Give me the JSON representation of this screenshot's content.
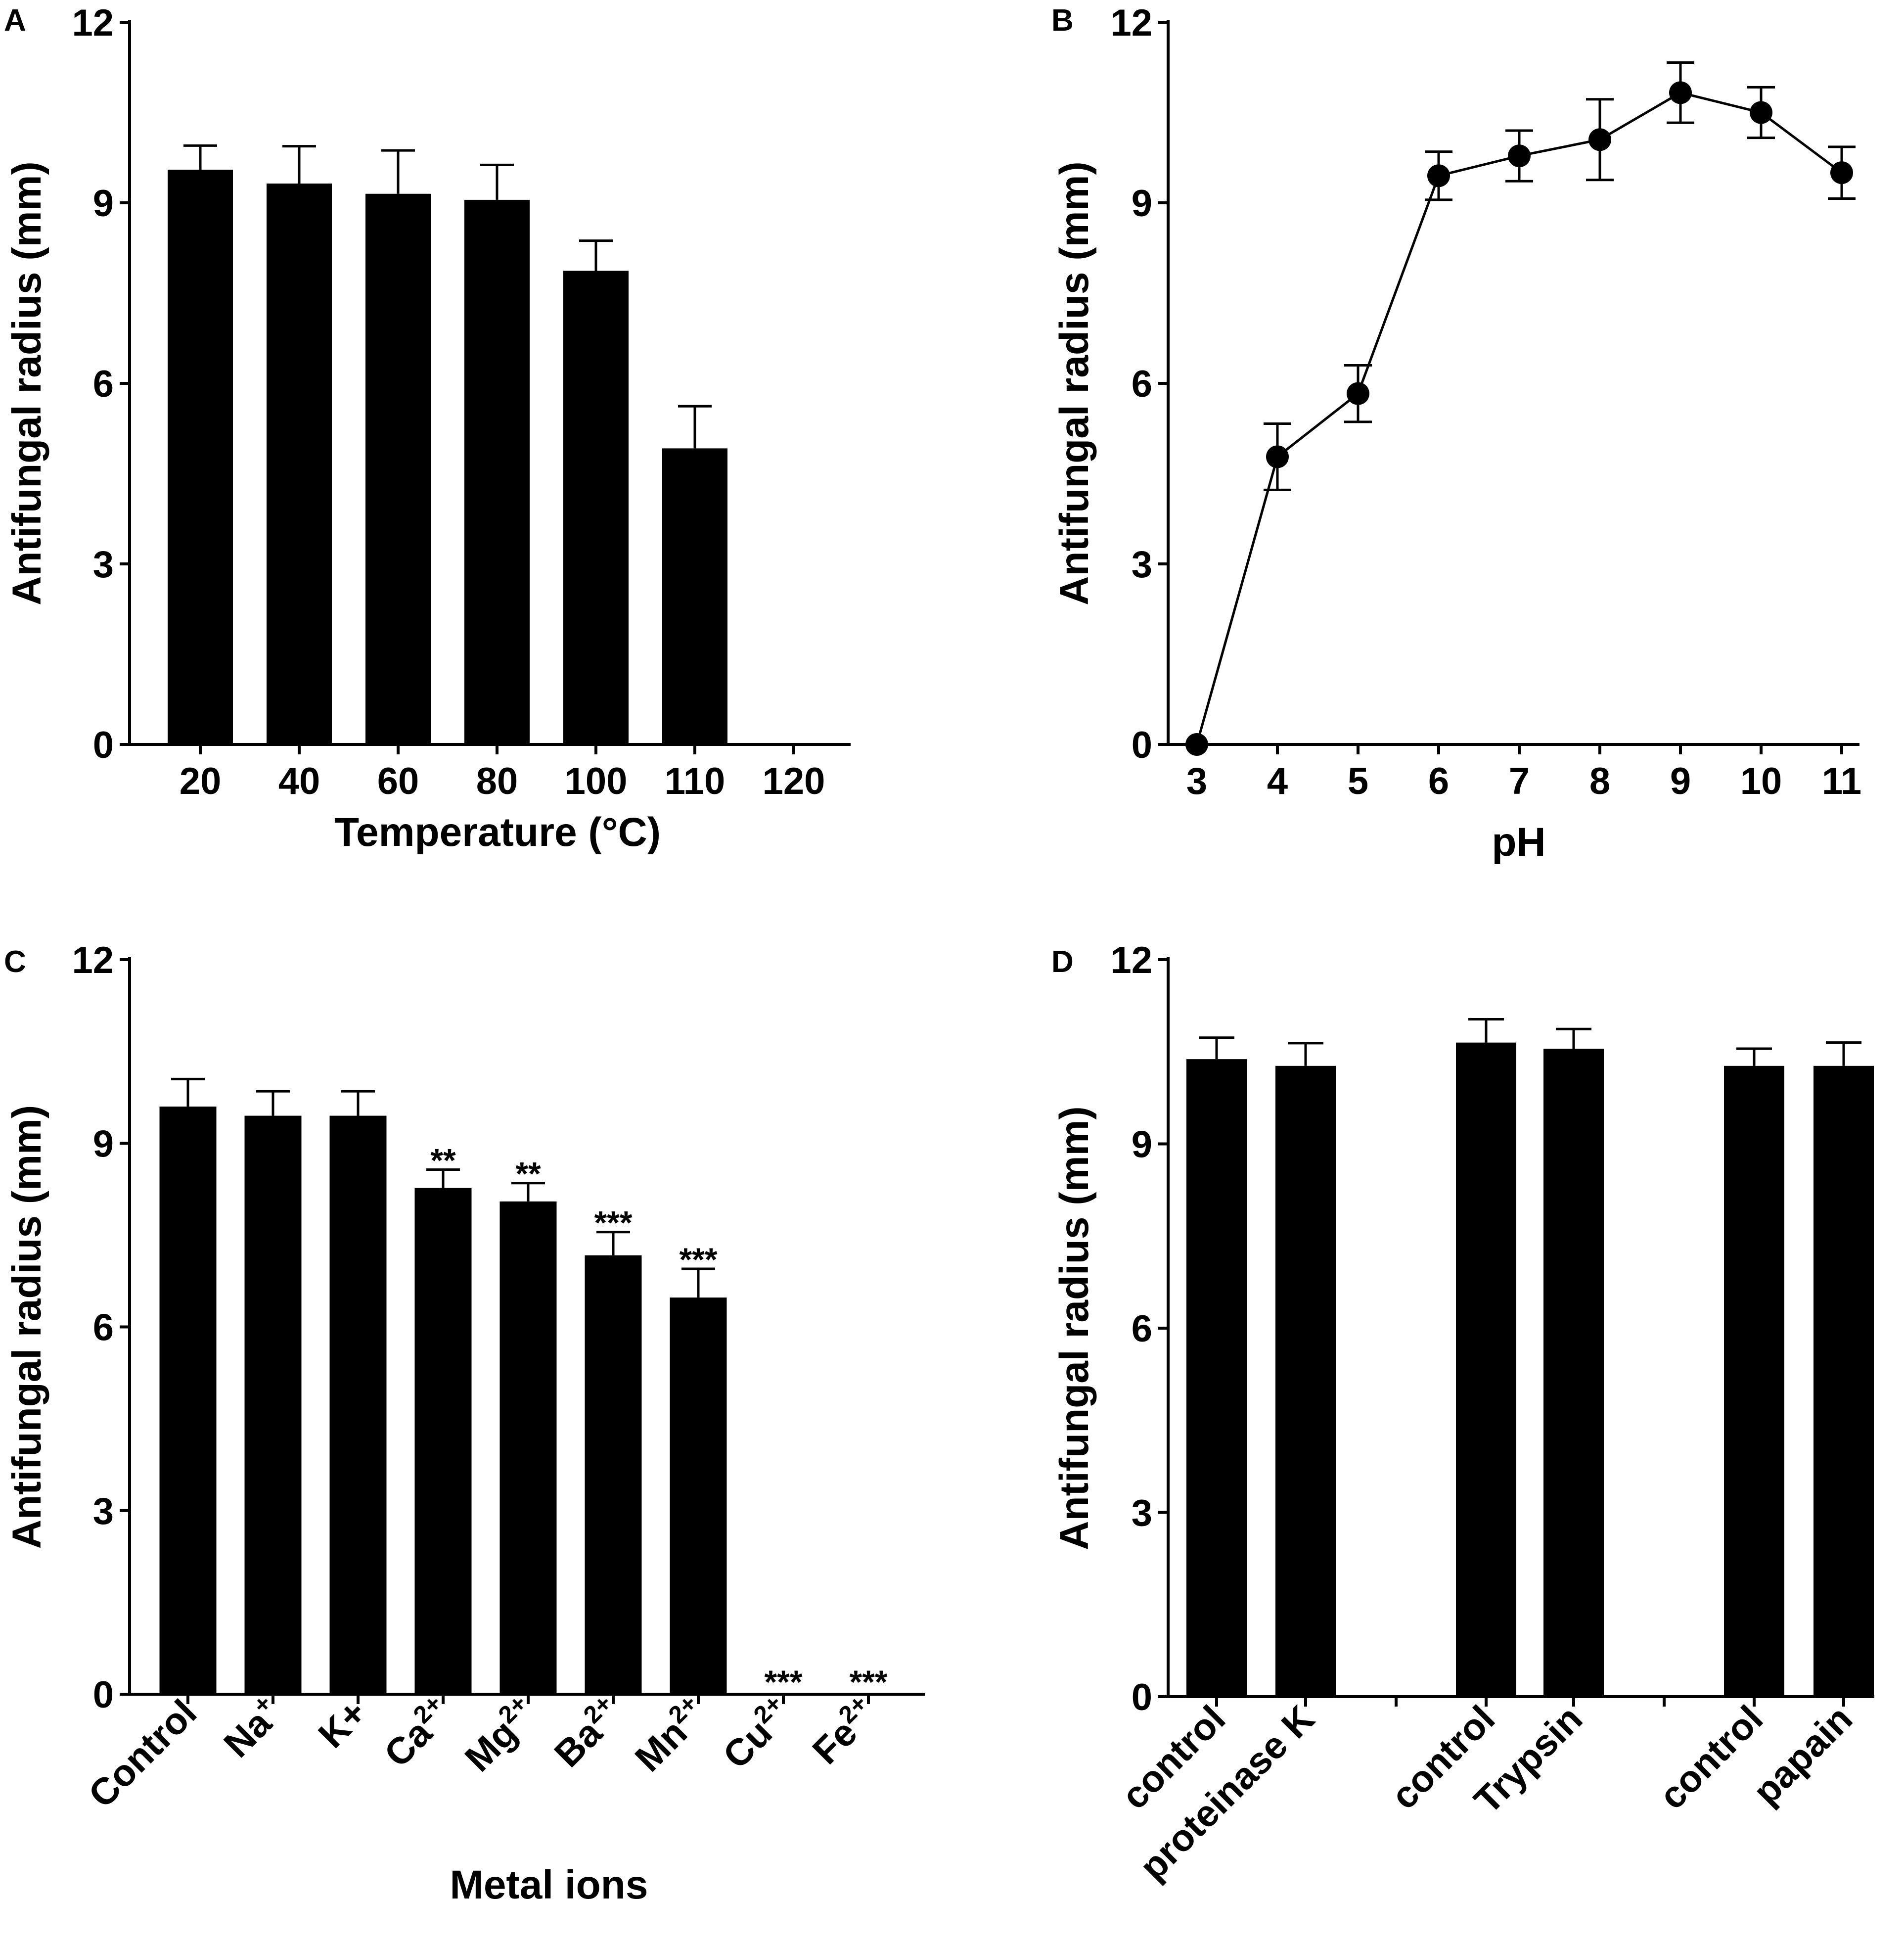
{
  "chart_data": [
    {
      "panel": "A",
      "type": "bar",
      "title": "",
      "xlabel": "Temperature (°C)",
      "ylabel": "Antifungal radius (mm)",
      "ylim": [
        0,
        12
      ],
      "yticks": [
        0,
        3,
        6,
        9,
        12
      ],
      "categories": [
        "20",
        "40",
        "60",
        "80",
        "100",
        "110",
        "120"
      ],
      "values": [
        9.55,
        9.32,
        9.15,
        9.05,
        7.87,
        4.92,
        0
      ],
      "errors": [
        0.4,
        0.62,
        0.72,
        0.58,
        0.5,
        0.7,
        0
      ]
    },
    {
      "panel": "B",
      "type": "line",
      "title": "",
      "xlabel": "pH",
      "ylabel": "Antifungal radius (mm)",
      "ylim": [
        0,
        12
      ],
      "xlim": [
        2.5,
        11.5
      ],
      "yticks": [
        0,
        3,
        6,
        9,
        12
      ],
      "x": [
        3,
        4,
        5,
        6,
        7,
        8,
        9,
        10,
        11
      ],
      "y": [
        0,
        4.78,
        5.83,
        9.45,
        9.78,
        10.05,
        10.83,
        10.5,
        9.5
      ],
      "errors": [
        0,
        0.55,
        0.47,
        0.4,
        0.42,
        0.67,
        0.5,
        0.42,
        0.43
      ]
    },
    {
      "panel": "C",
      "type": "bar",
      "title": "",
      "xlabel": "Metal ions",
      "ylabel": "Antifungal radius (mm)",
      "ylim": [
        0,
        12
      ],
      "yticks": [
        0,
        3,
        6,
        9,
        12
      ],
      "categories": [
        {
          "base": "Control",
          "sup": ""
        },
        {
          "base": "Na",
          "sup": "+"
        },
        {
          "base": "K+",
          "sup": ""
        },
        {
          "base": "Ca",
          "sup": "2+"
        },
        {
          "base": "Mg",
          "sup": "2+"
        },
        {
          "base": "Ba",
          "sup": "2+"
        },
        {
          "base": "Mn",
          "sup": "2+"
        },
        {
          "base": "Cu",
          "sup": "2+"
        },
        {
          "base": "Fe",
          "sup": "2+"
        }
      ],
      "values": [
        9.6,
        9.45,
        9.45,
        8.27,
        8.05,
        7.17,
        6.48,
        0,
        0
      ],
      "errors": [
        0.45,
        0.4,
        0.4,
        0.3,
        0.3,
        0.38,
        0.47,
        0,
        0
      ],
      "annotations": [
        "",
        "",
        "",
        "**",
        "**",
        "***",
        "***",
        "***",
        "***"
      ]
    },
    {
      "panel": "D",
      "type": "bar",
      "title": "",
      "xlabel": "",
      "ylabel": "Antifungal radius (mm)",
      "ylim": [
        0,
        12
      ],
      "yticks": [
        0,
        3,
        6,
        9,
        12
      ],
      "categories": [
        "control",
        "proteinase K",
        "control",
        "Trypsin",
        "control",
        "papain"
      ],
      "values": [
        10.38,
        10.27,
        10.65,
        10.55,
        10.27,
        10.27
      ],
      "errors": [
        0.35,
        0.37,
        0.38,
        0.32,
        0.28,
        0.38
      ]
    }
  ]
}
